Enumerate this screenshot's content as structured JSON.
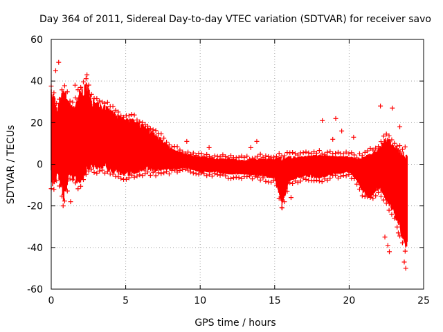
{
  "chart_data": {
    "type": "scatter",
    "title": "Day 364 of 2011, Sidereal Day-to-day VTEC variation (SDTVAR) for receiver savo",
    "xlabel": "GPS time / hours",
    "ylabel": "SDTVAR / TECUs",
    "xlim": [
      0,
      25
    ],
    "ylim": [
      -60,
      60
    ],
    "x_ticks": [
      0,
      5,
      10,
      15,
      20,
      25
    ],
    "y_ticks": [
      -60,
      -40,
      -20,
      0,
      20,
      40,
      60
    ],
    "grid": true,
    "marker": "+",
    "series_color": "#ff0000",
    "band": {
      "x": [
        0.0,
        0.2,
        0.4,
        0.6,
        0.8,
        1.0,
        1.2,
        1.5,
        1.8,
        2.1,
        2.4,
        2.7,
        3.0,
        3.5,
        4.0,
        4.5,
        5.0,
        5.5,
        6.0,
        6.5,
        7.0,
        7.5,
        8.0,
        9.0,
        10.0,
        11.0,
        12.0,
        13.0,
        14.0,
        15.0,
        15.5,
        16.0,
        17.0,
        18.0,
        19.0,
        20.0,
        20.5,
        21.0,
        21.5,
        22.0,
        22.5,
        23.0,
        23.3,
        23.5,
        23.7,
        23.9
      ],
      "upper": [
        36,
        34,
        28,
        32,
        36,
        37,
        30,
        28,
        35,
        38,
        40,
        32,
        31,
        29,
        27,
        24,
        22,
        22,
        20,
        18,
        15,
        12,
        8,
        5,
        4,
        3,
        3,
        2,
        3,
        3,
        4,
        4,
        4,
        5,
        4,
        4,
        3,
        4,
        6,
        8,
        14,
        10,
        8,
        6,
        8,
        6
      ],
      "lower": [
        -10,
        -12,
        -5,
        -10,
        -18,
        -15,
        -5,
        -8,
        -10,
        -8,
        -4,
        -2,
        -3,
        -2,
        -4,
        -5,
        -6,
        -5,
        -4,
        -3,
        -4,
        -3,
        -3,
        -2,
        -4,
        -4,
        -5,
        -5,
        -6,
        -7,
        -20,
        -8,
        -6,
        -7,
        -5,
        -4,
        -8,
        -15,
        -16,
        -12,
        -18,
        -24,
        -30,
        -35,
        -40,
        -42
      ]
    },
    "outliers": [
      {
        "x": 0.5,
        "y": 49
      },
      {
        "x": 0.3,
        "y": 45
      },
      {
        "x": 2.4,
        "y": 43
      },
      {
        "x": 1.3,
        "y": -18
      },
      {
        "x": 0.8,
        "y": -20
      },
      {
        "x": 1.6,
        "y": 38
      },
      {
        "x": 9.1,
        "y": 11
      },
      {
        "x": 10.6,
        "y": 8
      },
      {
        "x": 13.4,
        "y": 8
      },
      {
        "x": 13.8,
        "y": 11
      },
      {
        "x": 15.5,
        "y": -21
      },
      {
        "x": 16.1,
        "y": -16
      },
      {
        "x": 18.2,
        "y": 21
      },
      {
        "x": 18.9,
        "y": 12
      },
      {
        "x": 19.1,
        "y": 22
      },
      {
        "x": 19.5,
        "y": 16
      },
      {
        "x": 20.3,
        "y": 13
      },
      {
        "x": 22.1,
        "y": 28
      },
      {
        "x": 22.9,
        "y": 27
      },
      {
        "x": 23.4,
        "y": 18
      },
      {
        "x": 22.7,
        "y": -42
      },
      {
        "x": 22.6,
        "y": -39
      },
      {
        "x": 22.4,
        "y": -35
      },
      {
        "x": 23.8,
        "y": -50
      },
      {
        "x": 23.7,
        "y": -47
      },
      {
        "x": 23.3,
        "y": -33
      },
      {
        "x": 21.6,
        "y": -5
      },
      {
        "x": 20.8,
        "y": -10
      }
    ]
  }
}
